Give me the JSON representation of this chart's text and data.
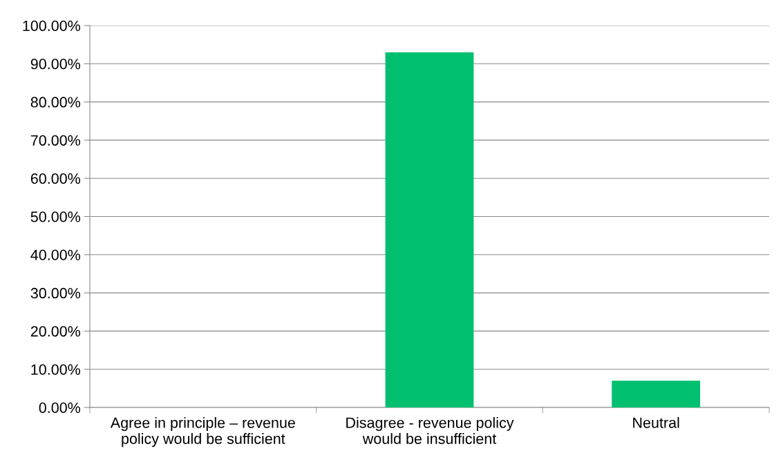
{
  "chart_data": {
    "type": "bar",
    "categories": [
      "Agree in principle – revenue\npolicy would be sufficient",
      "Disagree - revenue policy\nwould be insufficient",
      "Neutral"
    ],
    "values": [
      0,
      93,
      7
    ],
    "color": "#00bf6f",
    "ylim": [
      0,
      100
    ],
    "yticks": [
      {
        "value": 0,
        "label": "0.00%"
      },
      {
        "value": 10,
        "label": "10.00%"
      },
      {
        "value": 20,
        "label": "20.00%"
      },
      {
        "value": 30,
        "label": "30.00%"
      },
      {
        "value": 40,
        "label": "40.00%"
      },
      {
        "value": 50,
        "label": "50.00%"
      },
      {
        "value": 60,
        "label": "60.00%"
      },
      {
        "value": 70,
        "label": "70.00%"
      },
      {
        "value": 80,
        "label": "80.00%"
      },
      {
        "value": 90,
        "label": "90.00%"
      },
      {
        "value": 100,
        "label": "100.00%"
      }
    ],
    "grid": "y",
    "legend": false
  }
}
